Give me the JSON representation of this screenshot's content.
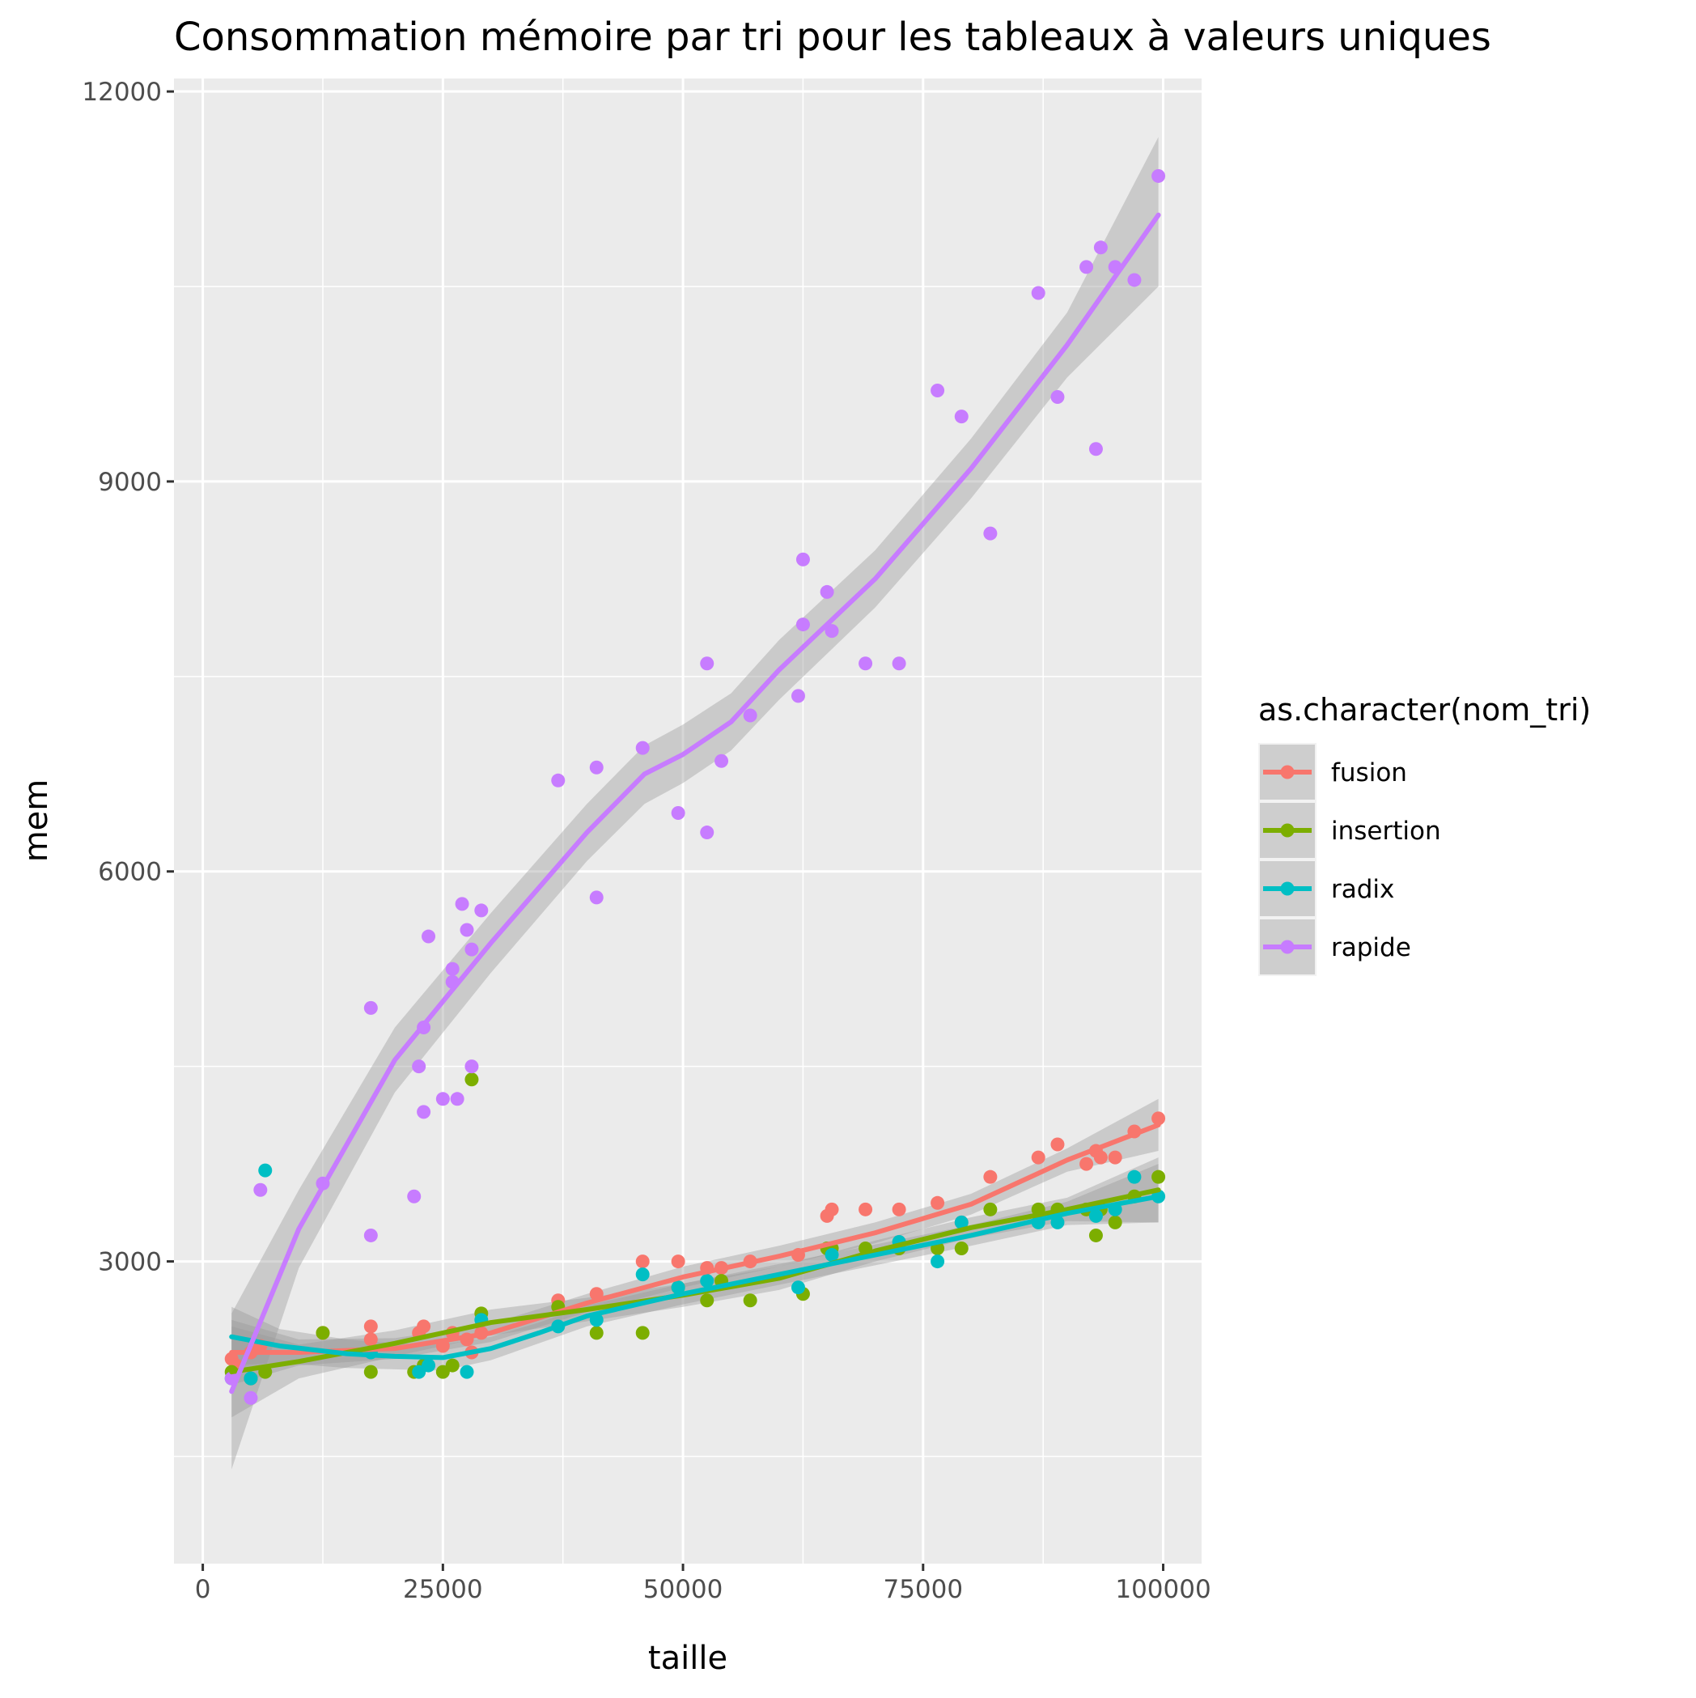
{
  "chart_data": {
    "type": "scatter",
    "title": "Consommation mémoire par tri pour les tableaux à valeurs uniques",
    "xlabel": "taille",
    "ylabel": "mem",
    "xlim": [
      -3000,
      104000
    ],
    "ylim": [
      675,
      12100
    ],
    "x_ticks": [
      0,
      25000,
      50000,
      75000,
      100000
    ],
    "x_tick_labels": [
      "0",
      "25000",
      "50000",
      "75000",
      "100000"
    ],
    "y_ticks": [
      3000,
      6000,
      9000,
      12000
    ],
    "y_tick_labels": [
      "3000",
      "6000",
      "9000",
      "12000"
    ],
    "grid": true,
    "panel_background": "#ebebeb",
    "legend": {
      "title": "as.character(nom_tri)",
      "position": "right"
    },
    "series": [
      {
        "name": "fusion",
        "color": "#F8766D",
        "points": [
          [
            3000,
            2250
          ],
          [
            3500,
            2200
          ],
          [
            5000,
            2300
          ],
          [
            6000,
            2350
          ],
          [
            12500,
            2450
          ],
          [
            17500,
            2400
          ],
          [
            17500,
            2500
          ],
          [
            22500,
            2450
          ],
          [
            23000,
            2500
          ],
          [
            25000,
            2350
          ],
          [
            26000,
            2450
          ],
          [
            27500,
            2400
          ],
          [
            28000,
            2300
          ],
          [
            29000,
            2450
          ],
          [
            37000,
            2700
          ],
          [
            41000,
            2750
          ],
          [
            45800,
            3000
          ],
          [
            49500,
            3000
          ],
          [
            52500,
            2950
          ],
          [
            54000,
            2950
          ],
          [
            57000,
            3000
          ],
          [
            62000,
            3050
          ],
          [
            65000,
            3350
          ],
          [
            65500,
            3400
          ],
          [
            69000,
            3400
          ],
          [
            72500,
            3400
          ],
          [
            76500,
            3450
          ],
          [
            79000,
            3300
          ],
          [
            82000,
            3650
          ],
          [
            87000,
            3800
          ],
          [
            89000,
            3900
          ],
          [
            92000,
            3750
          ],
          [
            93000,
            3850
          ],
          [
            93500,
            3800
          ],
          [
            95000,
            3800
          ],
          [
            97000,
            4000
          ],
          [
            99500,
            4100
          ]
        ],
        "smooth": [
          [
            3000,
            2300
          ],
          [
            10000,
            2300
          ],
          [
            20000,
            2330
          ],
          [
            30000,
            2450
          ],
          [
            40000,
            2680
          ],
          [
            50000,
            2880
          ],
          [
            60000,
            3040
          ],
          [
            70000,
            3220
          ],
          [
            80000,
            3440
          ],
          [
            90000,
            3780
          ],
          [
            99500,
            4050
          ]
        ],
        "ci": [
          [
            3000,
            2050,
            2550
          ],
          [
            10000,
            2200,
            2400
          ],
          [
            20000,
            2250,
            2410
          ],
          [
            30000,
            2380,
            2520
          ],
          [
            40000,
            2610,
            2750
          ],
          [
            50000,
            2800,
            2960
          ],
          [
            60000,
            2960,
            3120
          ],
          [
            70000,
            3140,
            3300
          ],
          [
            80000,
            3360,
            3520
          ],
          [
            90000,
            3690,
            3870
          ],
          [
            99500,
            3850,
            4250
          ]
        ]
      },
      {
        "name": "insertion",
        "color": "#7CAE00",
        "points": [
          [
            3000,
            2150
          ],
          [
            5000,
            2100
          ],
          [
            6500,
            2150
          ],
          [
            12500,
            2450
          ],
          [
            17500,
            2150
          ],
          [
            22000,
            2150
          ],
          [
            23000,
            2200
          ],
          [
            25000,
            2150
          ],
          [
            26000,
            2200
          ],
          [
            28000,
            4400
          ],
          [
            29000,
            2600
          ],
          [
            37000,
            2650
          ],
          [
            41000,
            2450
          ],
          [
            45800,
            2450
          ],
          [
            49500,
            2800
          ],
          [
            52500,
            2700
          ],
          [
            54000,
            2850
          ],
          [
            57000,
            2700
          ],
          [
            62500,
            2750
          ],
          [
            65000,
            3100
          ],
          [
            65500,
            3100
          ],
          [
            69000,
            3100
          ],
          [
            72500,
            3100
          ],
          [
            76500,
            3100
          ],
          [
            79000,
            3100
          ],
          [
            82000,
            3400
          ],
          [
            87000,
            3400
          ],
          [
            89000,
            3400
          ],
          [
            92000,
            3400
          ],
          [
            93000,
            3200
          ],
          [
            93500,
            3400
          ],
          [
            95000,
            3300
          ],
          [
            97000,
            3500
          ],
          [
            99500,
            3650
          ]
        ],
        "smooth": [
          [
            3000,
            2150
          ],
          [
            10000,
            2230
          ],
          [
            20000,
            2370
          ],
          [
            30000,
            2530
          ],
          [
            40000,
            2630
          ],
          [
            50000,
            2740
          ],
          [
            60000,
            2870
          ],
          [
            70000,
            3080
          ],
          [
            80000,
            3260
          ],
          [
            90000,
            3400
          ],
          [
            99500,
            3550
          ]
        ],
        "ci": [
          [
            3000,
            1800,
            2500
          ],
          [
            10000,
            2100,
            2360
          ],
          [
            20000,
            2270,
            2470
          ],
          [
            30000,
            2430,
            2630
          ],
          [
            40000,
            2540,
            2720
          ],
          [
            50000,
            2650,
            2830
          ],
          [
            60000,
            2780,
            2960
          ],
          [
            70000,
            3000,
            3160
          ],
          [
            80000,
            3180,
            3340
          ],
          [
            90000,
            3310,
            3490
          ],
          [
            99500,
            3300,
            3800
          ]
        ]
      },
      {
        "name": "radix",
        "color": "#00BFC4",
        "points": [
          [
            3000,
            2100
          ],
          [
            5000,
            2100
          ],
          [
            6500,
            3700
          ],
          [
            17500,
            2300
          ],
          [
            22500,
            2150
          ],
          [
            23500,
            2200
          ],
          [
            27500,
            2150
          ],
          [
            29000,
            2550
          ],
          [
            37000,
            2500
          ],
          [
            41000,
            2550
          ],
          [
            45800,
            2900
          ],
          [
            49500,
            2800
          ],
          [
            52500,
            2850
          ],
          [
            62000,
            2800
          ],
          [
            65500,
            3050
          ],
          [
            72500,
            3150
          ],
          [
            76500,
            3000
          ],
          [
            79000,
            3300
          ],
          [
            87000,
            3300
          ],
          [
            89000,
            3300
          ],
          [
            93000,
            3350
          ],
          [
            95000,
            3400
          ],
          [
            97000,
            3650
          ],
          [
            99500,
            3500
          ]
        ],
        "smooth": [
          [
            3000,
            2420
          ],
          [
            8000,
            2350
          ],
          [
            15000,
            2290
          ],
          [
            20000,
            2270
          ],
          [
            25000,
            2260
          ],
          [
            30000,
            2330
          ],
          [
            35000,
            2450
          ],
          [
            40000,
            2580
          ],
          [
            50000,
            2750
          ],
          [
            60000,
            2900
          ],
          [
            70000,
            3050
          ],
          [
            80000,
            3200
          ],
          [
            90000,
            3370
          ],
          [
            99500,
            3500
          ]
        ],
        "ci": [
          [
            3000,
            2200,
            2650
          ],
          [
            8000,
            2220,
            2480
          ],
          [
            15000,
            2180,
            2400
          ],
          [
            20000,
            2170,
            2370
          ],
          [
            25000,
            2160,
            2360
          ],
          [
            30000,
            2240,
            2420
          ],
          [
            35000,
            2370,
            2530
          ],
          [
            40000,
            2500,
            2660
          ],
          [
            50000,
            2670,
            2830
          ],
          [
            60000,
            2820,
            2980
          ],
          [
            70000,
            2970,
            3130
          ],
          [
            80000,
            3120,
            3280
          ],
          [
            90000,
            3280,
            3460
          ],
          [
            99500,
            3300,
            3750
          ]
        ]
      },
      {
        "name": "rapide",
        "color": "#C77CFF",
        "points": [
          [
            3000,
            2100
          ],
          [
            5000,
            1950
          ],
          [
            6000,
            3550
          ],
          [
            12500,
            3600
          ],
          [
            17500,
            4950
          ],
          [
            17500,
            3200
          ],
          [
            22000,
            3500
          ],
          [
            22500,
            4500
          ],
          [
            23000,
            4800
          ],
          [
            23000,
            4150
          ],
          [
            23500,
            5500
          ],
          [
            25000,
            4250
          ],
          [
            26000,
            5250
          ],
          [
            26000,
            5150
          ],
          [
            26500,
            4250
          ],
          [
            27000,
            5750
          ],
          [
            27500,
            5550
          ],
          [
            28000,
            5400
          ],
          [
            28000,
            4500
          ],
          [
            29000,
            5700
          ],
          [
            37000,
            6700
          ],
          [
            41000,
            6800
          ],
          [
            41000,
            5800
          ],
          [
            45800,
            6950
          ],
          [
            49500,
            6450
          ],
          [
            52500,
            6300
          ],
          [
            52500,
            7600
          ],
          [
            54000,
            6850
          ],
          [
            57000,
            7200
          ],
          [
            62000,
            7350
          ],
          [
            62500,
            8400
          ],
          [
            62500,
            7900
          ],
          [
            65000,
            8150
          ],
          [
            65500,
            7850
          ],
          [
            69000,
            7600
          ],
          [
            72500,
            7600
          ],
          [
            76500,
            9700
          ],
          [
            79000,
            9500
          ],
          [
            82000,
            8600
          ],
          [
            87000,
            10450
          ],
          [
            89000,
            9650
          ],
          [
            92000,
            10650
          ],
          [
            93000,
            9250
          ],
          [
            93500,
            10800
          ],
          [
            95000,
            10650
          ],
          [
            97000,
            10550
          ],
          [
            99500,
            11350
          ]
        ],
        "smooth": [
          [
            3000,
            2000
          ],
          [
            10000,
            3250
          ],
          [
            20000,
            4550
          ],
          [
            30000,
            5450
          ],
          [
            40000,
            6300
          ],
          [
            46000,
            6750
          ],
          [
            50000,
            6900
          ],
          [
            55000,
            7150
          ],
          [
            60000,
            7550
          ],
          [
            70000,
            8250
          ],
          [
            80000,
            9100
          ],
          [
            90000,
            10050
          ],
          [
            99500,
            11050
          ]
        ],
        "ci": [
          [
            3000,
            1400,
            2600
          ],
          [
            10000,
            2950,
            3550
          ],
          [
            20000,
            4300,
            4800
          ],
          [
            30000,
            5220,
            5680
          ],
          [
            40000,
            6080,
            6520
          ],
          [
            46000,
            6520,
            6970
          ],
          [
            50000,
            6680,
            7130
          ],
          [
            55000,
            6930,
            7370
          ],
          [
            60000,
            7320,
            7780
          ],
          [
            70000,
            8030,
            8470
          ],
          [
            80000,
            8870,
            9330
          ],
          [
            90000,
            9800,
            10300
          ],
          [
            99500,
            10500,
            11650
          ]
        ]
      }
    ]
  }
}
